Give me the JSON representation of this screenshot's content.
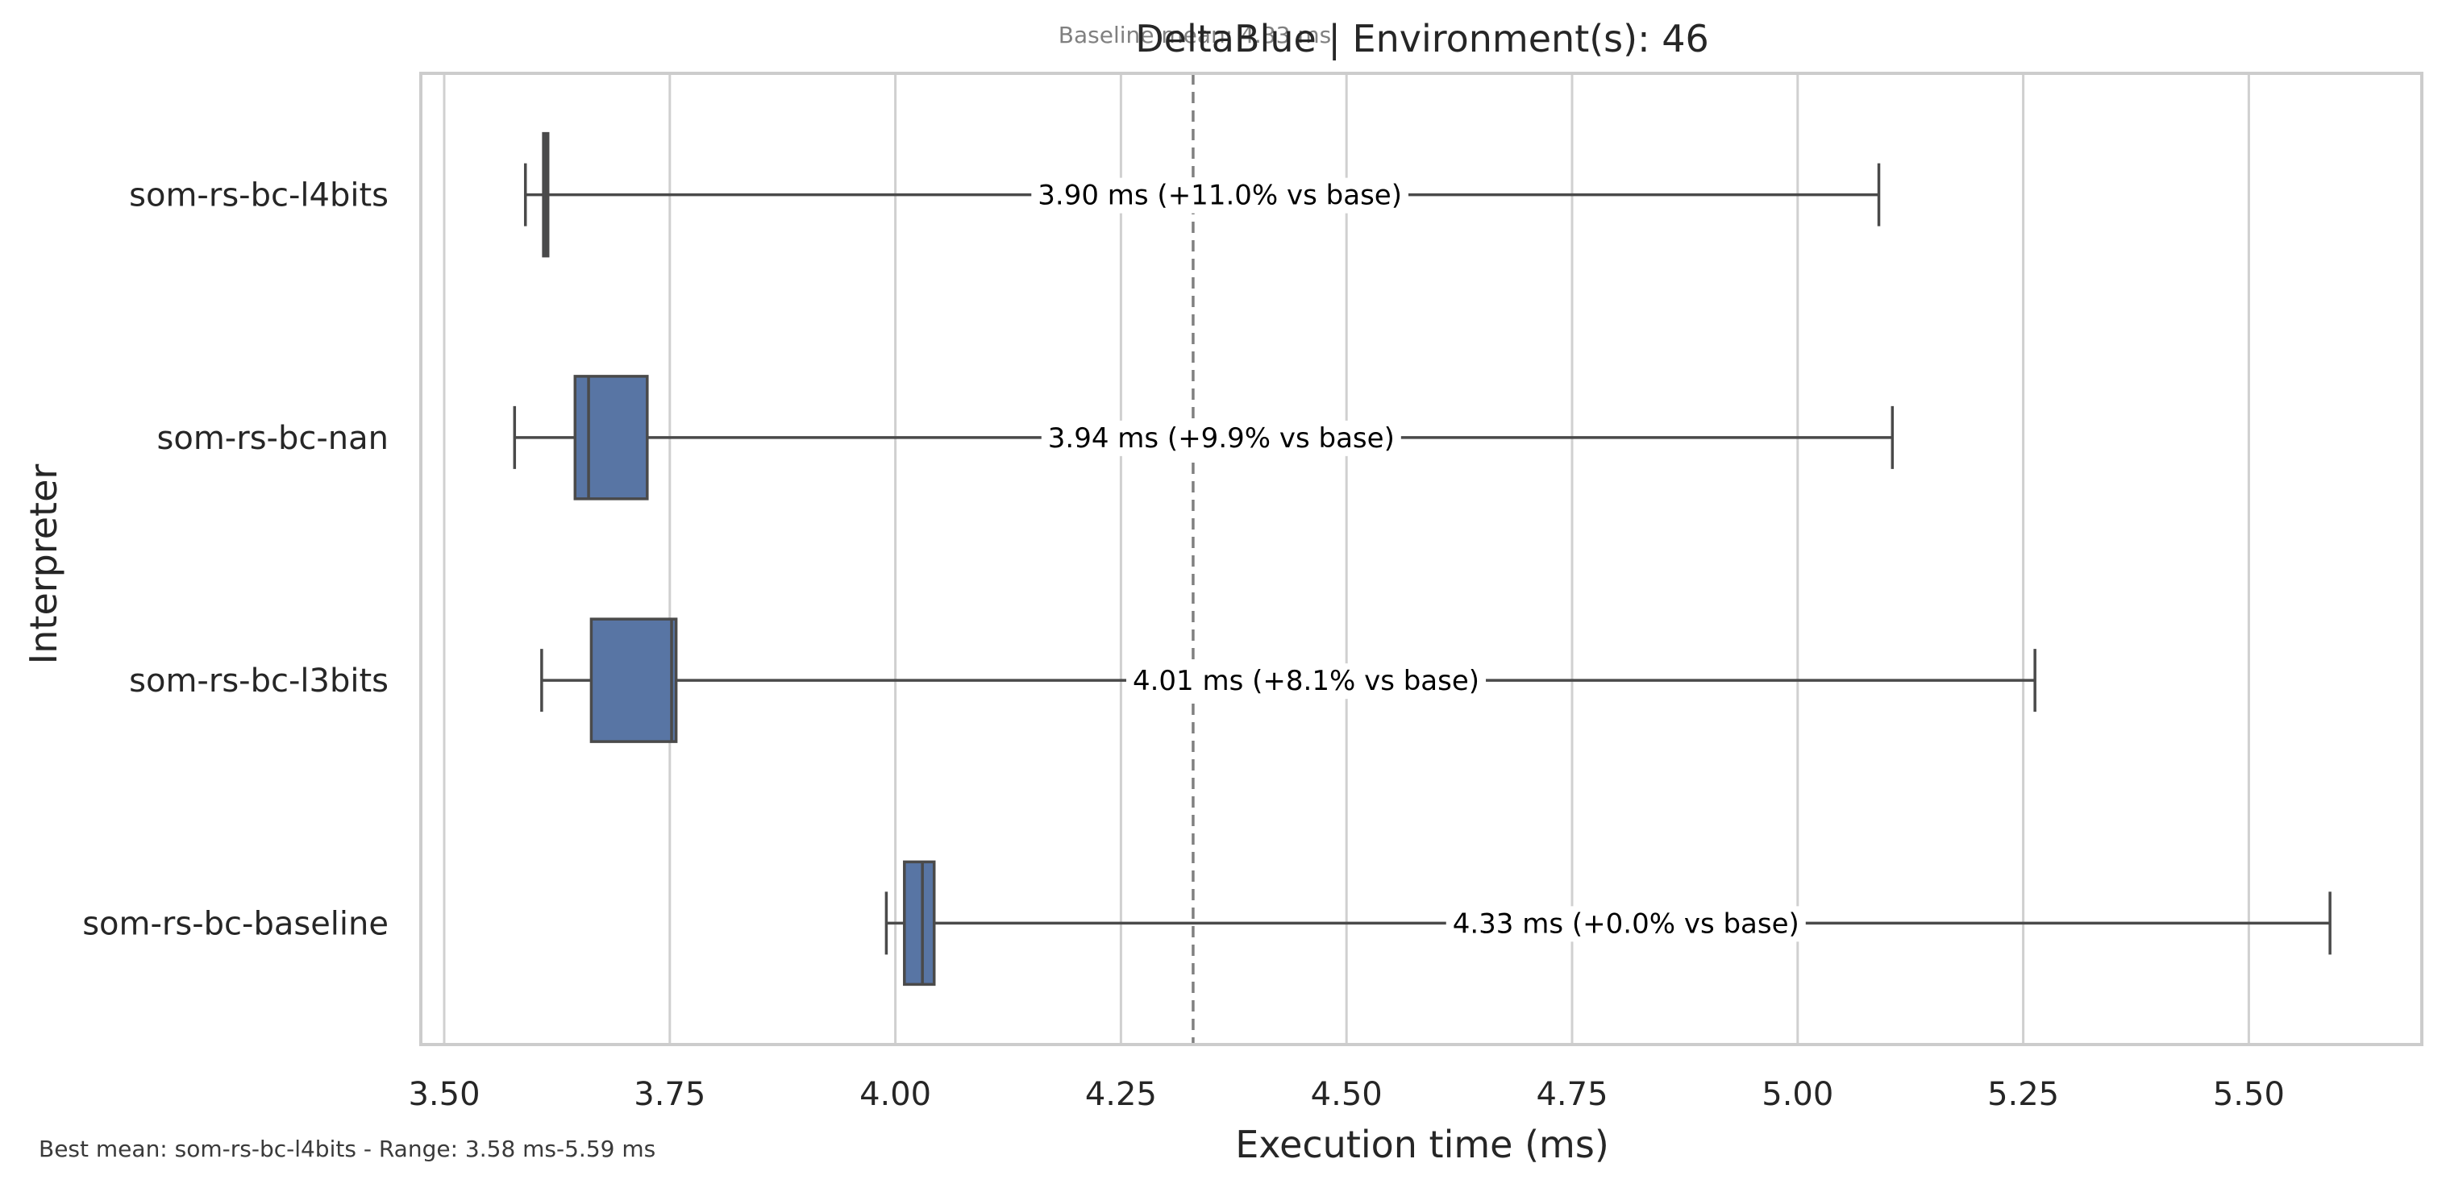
{
  "chart_data": {
    "type": "box",
    "orientation": "horizontal",
    "title": "DeltaBlue | Environment(s): 46",
    "baseline_note": "Baseline mean: 4.33 ms",
    "xlabel": "Execution time (ms)",
    "ylabel": "Interpreter",
    "footer": "Best mean: som-rs-bc-l4bits - Range: 3.58 ms-5.59 ms",
    "xlim": [
      3.475,
      6.7
    ],
    "x_ticks": [
      3.5,
      3.75,
      4.0,
      4.25,
      4.5,
      4.75,
      5.0,
      5.25,
      5.5
    ],
    "x_tick_labels": [
      "3.50",
      "3.75",
      "4.00",
      "4.25",
      "4.50",
      "4.75",
      "5.00",
      "5.25",
      "5.50"
    ],
    "grid": "vertical",
    "baseline_mean": 4.33,
    "box_color": "#5875a4",
    "line_color": "#4a4a4a",
    "series": [
      {
        "name": "som-rs-bc-l4bits",
        "whisker_low": 3.59,
        "q1": 3.61,
        "median": 3.613,
        "q3": 3.615,
        "whisker_high": 5.09,
        "label": "3.90 ms  (+11.0% vs base)"
      },
      {
        "name": "som-rs-bc-nan",
        "whisker_low": 3.578,
        "q1": 3.645,
        "median": 3.66,
        "q3": 3.725,
        "whisker_high": 5.105,
        "label": "3.94 ms  (+9.9% vs base)"
      },
      {
        "name": "som-rs-bc-l3bits",
        "whisker_low": 3.608,
        "q1": 3.663,
        "median": 3.752,
        "q3": 3.757,
        "whisker_high": 5.263,
        "label": "4.01 ms  (+8.1% vs base)"
      },
      {
        "name": "som-rs-bc-baseline",
        "whisker_low": 3.99,
        "q1": 4.01,
        "median": 4.03,
        "q3": 4.043,
        "whisker_high": 5.59,
        "label": "4.33 ms  (+0.0% vs base)"
      }
    ]
  }
}
